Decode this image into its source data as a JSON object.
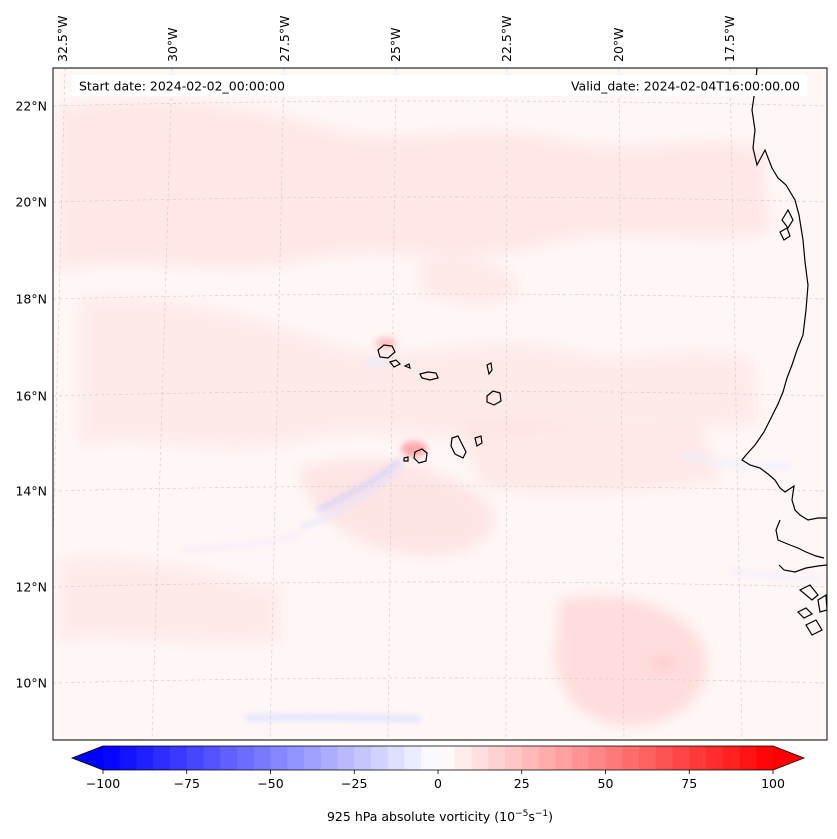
{
  "map": {
    "start_date": "Start date: 2024-02-02_00:00:00",
    "valid_date": "Valid_date: 2024-02-04T16:00:00.00",
    "lon_labels": [
      "32.5°W",
      "30°W",
      "27.5°W",
      "25°W",
      "22.5°W",
      "20°W",
      "17.5°W"
    ],
    "lat_labels": [
      "22°N",
      "20°N",
      "18°N",
      "16°N",
      "14°N",
      "12°N",
      "10°N"
    ],
    "colors": {
      "coast": "#000000",
      "grid": "#c8c8c8",
      "background": "#fff5f5"
    }
  },
  "colorbar": {
    "label_prefix": "925 hPa absolute vorticity (10",
    "label_exp1": "−5",
    "label_mid": "s",
    "label_exp2": "−1",
    "label_suffix": ")",
    "min": -100,
    "max": 100,
    "step": 5,
    "ticks": [
      "−100",
      "−75",
      "−50",
      "−25",
      "0",
      "25",
      "50",
      "75",
      "100"
    ],
    "colors": {
      "negative": "#0000ff",
      "neutral": "#ffffff",
      "positive": "#ff0000"
    }
  }
}
